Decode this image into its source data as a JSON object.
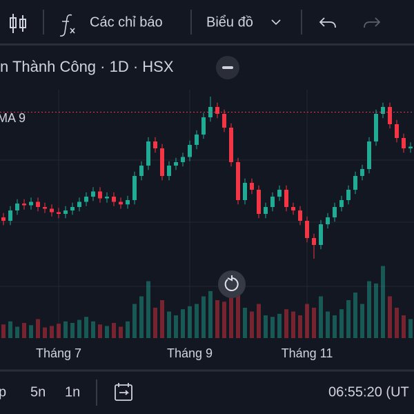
{
  "toolbar": {
    "indicators": "Các chỉ báo",
    "chart_menu": "Biểu đồ"
  },
  "legend": {
    "title": "n Thành Công · 1D · HSX",
    "ma": "MA 9"
  },
  "chart_data": {
    "type": "candlestick",
    "categories": [
      null,
      null,
      null,
      null,
      null,
      null,
      null,
      null,
      "Tháng 7",
      null,
      null,
      null,
      null,
      null,
      null,
      null,
      null,
      null,
      null,
      null,
      null,
      null,
      null,
      null,
      null,
      null,
      null,
      "Tháng 9",
      null,
      null,
      null,
      null,
      null,
      null,
      null,
      null,
      null,
      null,
      null,
      null,
      null,
      null,
      null,
      null,
      "Tháng 11",
      null,
      null,
      null,
      null,
      null,
      null,
      null,
      null,
      null,
      null,
      null,
      null,
      null,
      null,
      null
    ],
    "open": [
      25.2,
      24.8,
      26.0,
      26.8,
      26.6,
      27.0,
      26.4,
      26.2,
      25.8,
      25.6,
      26.0,
      26.4,
      27.0,
      27.6,
      28.2,
      27.4,
      27.6,
      27.0,
      26.7,
      27.2,
      30.0,
      31.2,
      34.0,
      33.2,
      30.0,
      31.2,
      31.6,
      32.2,
      33.6,
      34.8,
      36.8,
      38.0,
      37.2,
      35.6,
      31.6,
      27.2,
      29.2,
      28.4,
      25.6,
      26.4,
      27.6,
      28.4,
      26.4,
      26.0,
      24.8,
      22.8,
      22.0,
      24.4,
      25.2,
      26.4,
      27.2,
      28.4,
      30.0,
      30.8,
      34.0,
      37.2,
      38.0,
      36.0,
      34.4,
      33.2
    ],
    "high": [
      25.7,
      26.5,
      27.3,
      27.3,
      27.5,
      27.5,
      26.9,
      26.7,
      26.3,
      26.5,
      26.9,
      27.5,
      28.1,
      28.7,
      28.7,
      28.1,
      28.1,
      27.5,
      27.7,
      30.5,
      31.7,
      34.5,
      34.5,
      33.7,
      31.7,
      32.1,
      32.7,
      34.1,
      35.3,
      37.3,
      39.2,
      38.5,
      37.7,
      36.1,
      32.1,
      29.7,
      29.7,
      28.9,
      26.9,
      28.1,
      28.9,
      28.9,
      26.9,
      26.5,
      25.3,
      23.3,
      24.9,
      25.7,
      26.9,
      27.7,
      28.9,
      30.5,
      31.3,
      34.5,
      37.7,
      38.5,
      38.5,
      36.5,
      34.9,
      33.9
    ],
    "low": [
      24.3,
      24.3,
      25.5,
      26.1,
      26.1,
      25.9,
      25.7,
      25.3,
      25.1,
      25.1,
      25.5,
      25.9,
      26.5,
      27.1,
      26.9,
      26.9,
      26.5,
      26.2,
      26.2,
      26.7,
      29.5,
      30.7,
      32.7,
      29.5,
      29.5,
      30.7,
      31.1,
      31.7,
      33.1,
      34.3,
      36.3,
      36.7,
      35.1,
      31.1,
      26.7,
      26.7,
      27.9,
      25.1,
      25.1,
      25.9,
      27.1,
      25.9,
      25.5,
      24.3,
      22.3,
      20.4,
      21.5,
      23.9,
      24.7,
      25.9,
      26.7,
      27.9,
      29.5,
      30.3,
      33.5,
      36.7,
      35.5,
      33.9,
      32.7,
      32.7
    ],
    "close": [
      24.8,
      26.0,
      26.8,
      26.6,
      27.0,
      26.4,
      26.2,
      25.8,
      25.6,
      26.0,
      26.4,
      27.0,
      27.6,
      28.2,
      27.4,
      27.6,
      27.0,
      26.7,
      27.2,
      30.0,
      31.2,
      34.0,
      33.2,
      30.0,
      31.2,
      31.6,
      32.2,
      33.6,
      34.8,
      36.8,
      38.0,
      37.2,
      35.6,
      31.6,
      27.2,
      29.2,
      28.4,
      25.6,
      26.4,
      27.6,
      28.4,
      26.4,
      26.0,
      24.8,
      22.8,
      22.0,
      24.4,
      25.2,
      26.4,
      27.2,
      28.4,
      30.0,
      30.8,
      34.0,
      37.2,
      38.0,
      36.0,
      34.4,
      33.2,
      33.4
    ],
    "volume": [
      18,
      22,
      15,
      20,
      17,
      25,
      14,
      16,
      19,
      22,
      20,
      24,
      28,
      22,
      18,
      16,
      20,
      15,
      22,
      45,
      55,
      75,
      40,
      50,
      35,
      30,
      38,
      42,
      45,
      55,
      62,
      50,
      48,
      70,
      60,
      40,
      35,
      45,
      30,
      28,
      32,
      38,
      35,
      30,
      45,
      40,
      55,
      35,
      30,
      38,
      50,
      60,
      45,
      75,
      72,
      95,
      55,
      40,
      30,
      25
    ],
    "ylim": [
      20,
      40
    ],
    "y2lim": [
      0,
      100
    ],
    "price_line": 37.4,
    "up_color": "#22ab94",
    "down_color": "#f23645",
    "grid": true
  },
  "bottom_bar": {
    "ranges": [
      "p",
      "5n",
      "1n"
    ],
    "clock": "06:55:20 (UT"
  }
}
